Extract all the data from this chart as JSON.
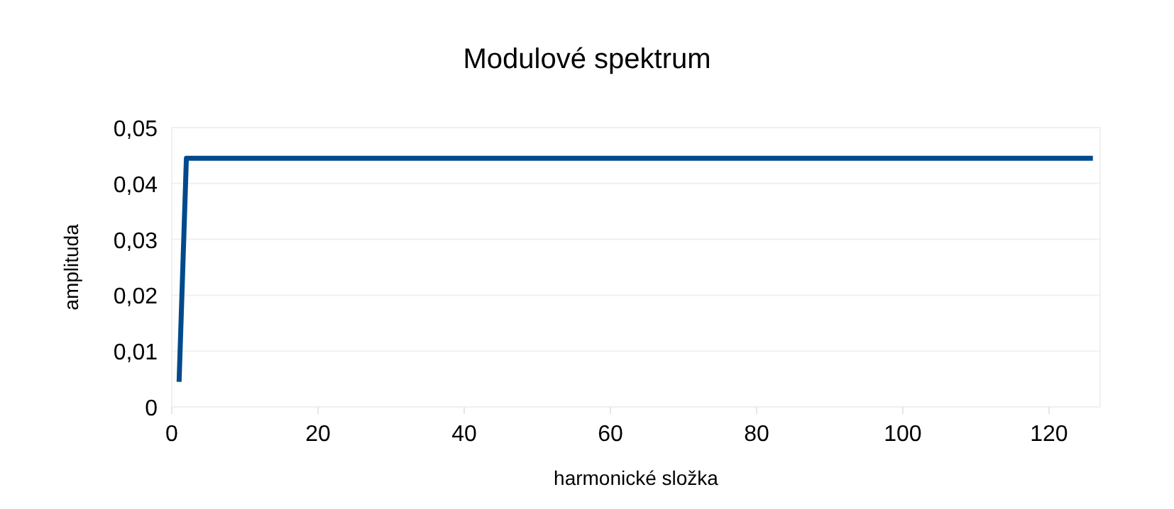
{
  "chart_data": {
    "type": "line",
    "title": "Modulové spektrum",
    "xlabel": "harmonické složka",
    "ylabel": "amplituda",
    "series": [
      {
        "color": "#004a8c",
        "x": [
          1,
          2,
          126
        ],
        "values": [
          0.0045,
          0.0445,
          0.0445
        ]
      }
    ],
    "xlim": [
      0,
      127
    ],
    "xticks": [
      0,
      20,
      40,
      60,
      80,
      100,
      120
    ],
    "ylim": [
      0,
      0.05
    ],
    "yticks": [
      {
        "value": 0,
        "label": "0"
      },
      {
        "value": 0.01,
        "label": "0,01"
      },
      {
        "value": 0.02,
        "label": "0,02"
      },
      {
        "value": 0.03,
        "label": "0,03"
      },
      {
        "value": 0.04,
        "label": "0,04"
      },
      {
        "value": 0.05,
        "label": "0,05"
      }
    ],
    "grid": "y",
    "marker": "none",
    "line_style": "solid"
  }
}
